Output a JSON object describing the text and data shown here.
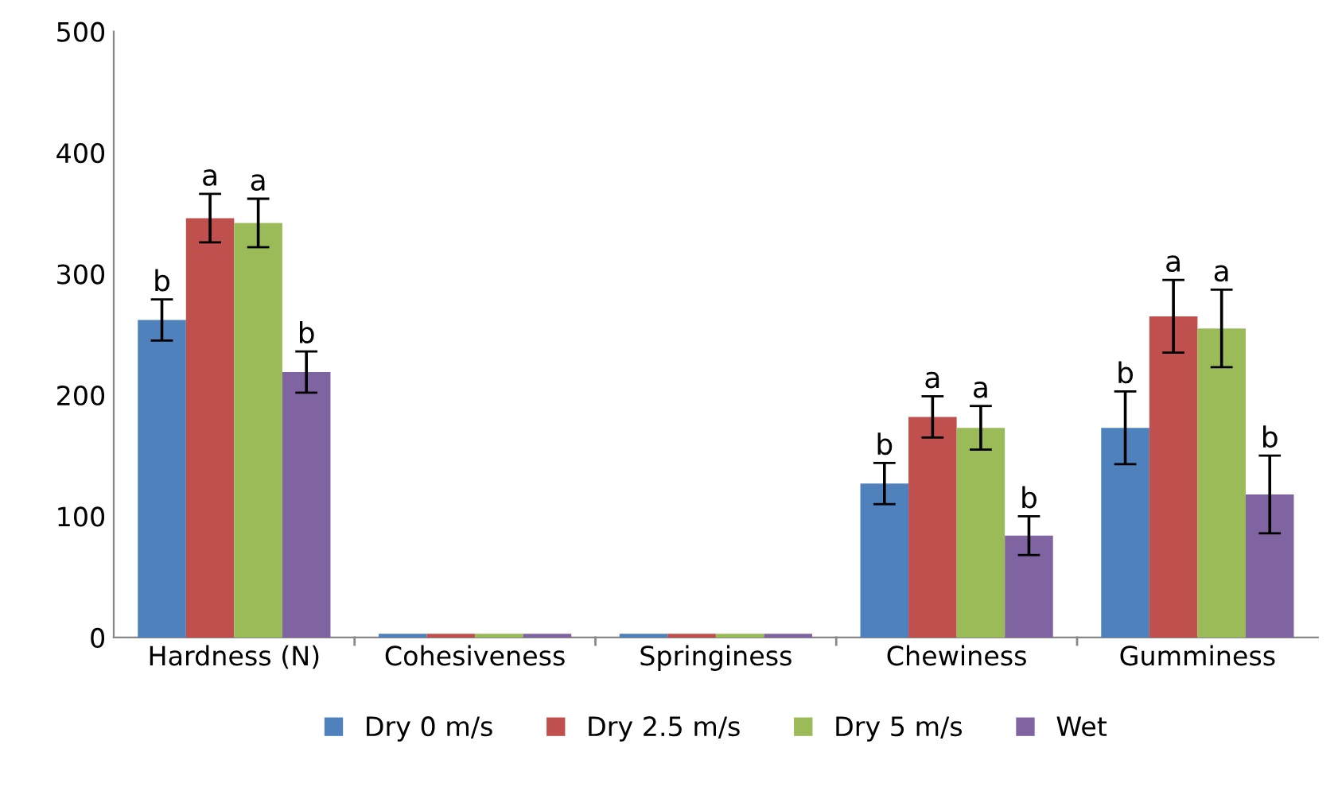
{
  "chart_data": {
    "type": "bar",
    "categories": [
      "Hardness (N)",
      "Cohesiveness",
      "Springiness",
      "Chewiness",
      "Gumminess"
    ],
    "series": [
      {
        "name": "Dry 0 m/s",
        "color": "#4f81bd",
        "values": [
          262,
          3,
          3,
          127,
          173
        ],
        "errors": [
          17,
          null,
          null,
          17,
          30
        ],
        "value_labels": [
          "b",
          null,
          null,
          "b",
          "b"
        ]
      },
      {
        "name": "Dry 2.5 m/s",
        "color": "#c0504d",
        "values": [
          346,
          3,
          3,
          182,
          265
        ],
        "errors": [
          20,
          null,
          null,
          17,
          30
        ],
        "value_labels": [
          "a",
          null,
          null,
          "a",
          "a"
        ]
      },
      {
        "name": "Dry 5 m/s",
        "color": "#9bbb59",
        "values": [
          342,
          3,
          3,
          173,
          255
        ],
        "errors": [
          20,
          null,
          null,
          18,
          32
        ],
        "value_labels": [
          "a",
          null,
          null,
          "a",
          "a"
        ]
      },
      {
        "name": "Wet",
        "color": "#8064a2",
        "values": [
          219,
          3,
          3,
          84,
          118
        ],
        "errors": [
          17,
          null,
          null,
          16,
          32
        ],
        "value_labels": [
          "b",
          null,
          null,
          "b",
          "b"
        ]
      }
    ],
    "ylim": [
      0,
      500
    ],
    "yticks": [
      0,
      100,
      200,
      300,
      400,
      500
    ],
    "grid": false,
    "legend": "bottom"
  }
}
